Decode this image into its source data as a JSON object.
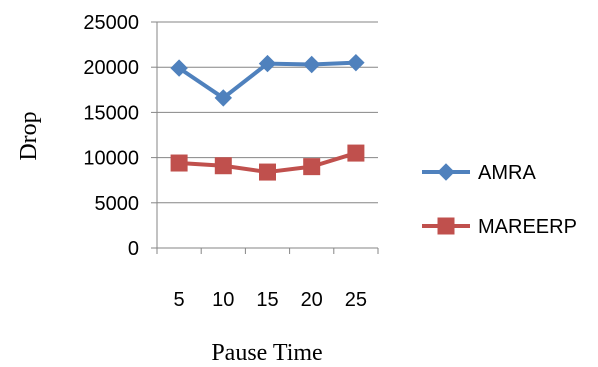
{
  "chart_data": {
    "type": "line",
    "title": "",
    "xlabel": "Pause Time",
    "ylabel": "Drop",
    "categories": [
      "5",
      "10",
      "15",
      "20",
      "25"
    ],
    "ylim": [
      0,
      25000
    ],
    "yticks": [
      0,
      5000,
      10000,
      15000,
      20000,
      25000
    ],
    "grid": "horizontal",
    "legend_position": "right",
    "series": [
      {
        "name": "AMRA",
        "values": [
          19900,
          16600,
          20400,
          20300,
          20500
        ],
        "color": "#4F81BD",
        "marker": "diamond"
      },
      {
        "name": "MAREERP",
        "values": [
          9400,
          9100,
          8400,
          9000,
          10500
        ],
        "color": "#C0504D",
        "marker": "square"
      }
    ]
  }
}
